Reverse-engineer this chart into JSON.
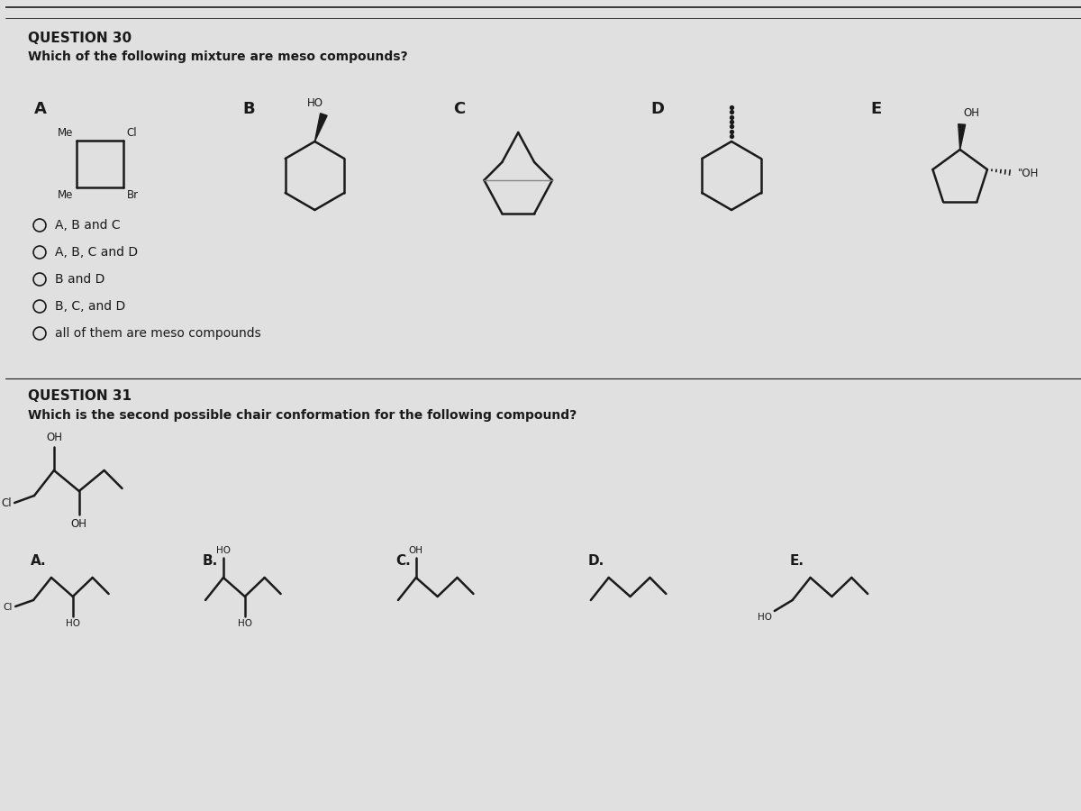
{
  "bg_color": "#e0e0e0",
  "title_q30": "QUESTION 30",
  "question_q30": "Which of the following mixture are meso compounds?",
  "title_q31": "QUESTION 31",
  "question_q31": "Which is the second possible chair conformation for the following compound?",
  "options_q30": [
    "A, B and C",
    "A, B, C and D",
    "B and D",
    "B, C, and D",
    "all of them are meso compounds"
  ],
  "compound_labels": [
    "A",
    "B",
    "C",
    "D",
    "E"
  ],
  "answer_labels_q31": [
    "A.",
    "B.",
    "C.",
    "D.",
    "E."
  ],
  "line_color": "#1a1a1a",
  "text_color": "#1a1a1a",
  "font_size_title": 11,
  "font_size_question": 10,
  "font_size_label": 12,
  "font_size_option": 10
}
